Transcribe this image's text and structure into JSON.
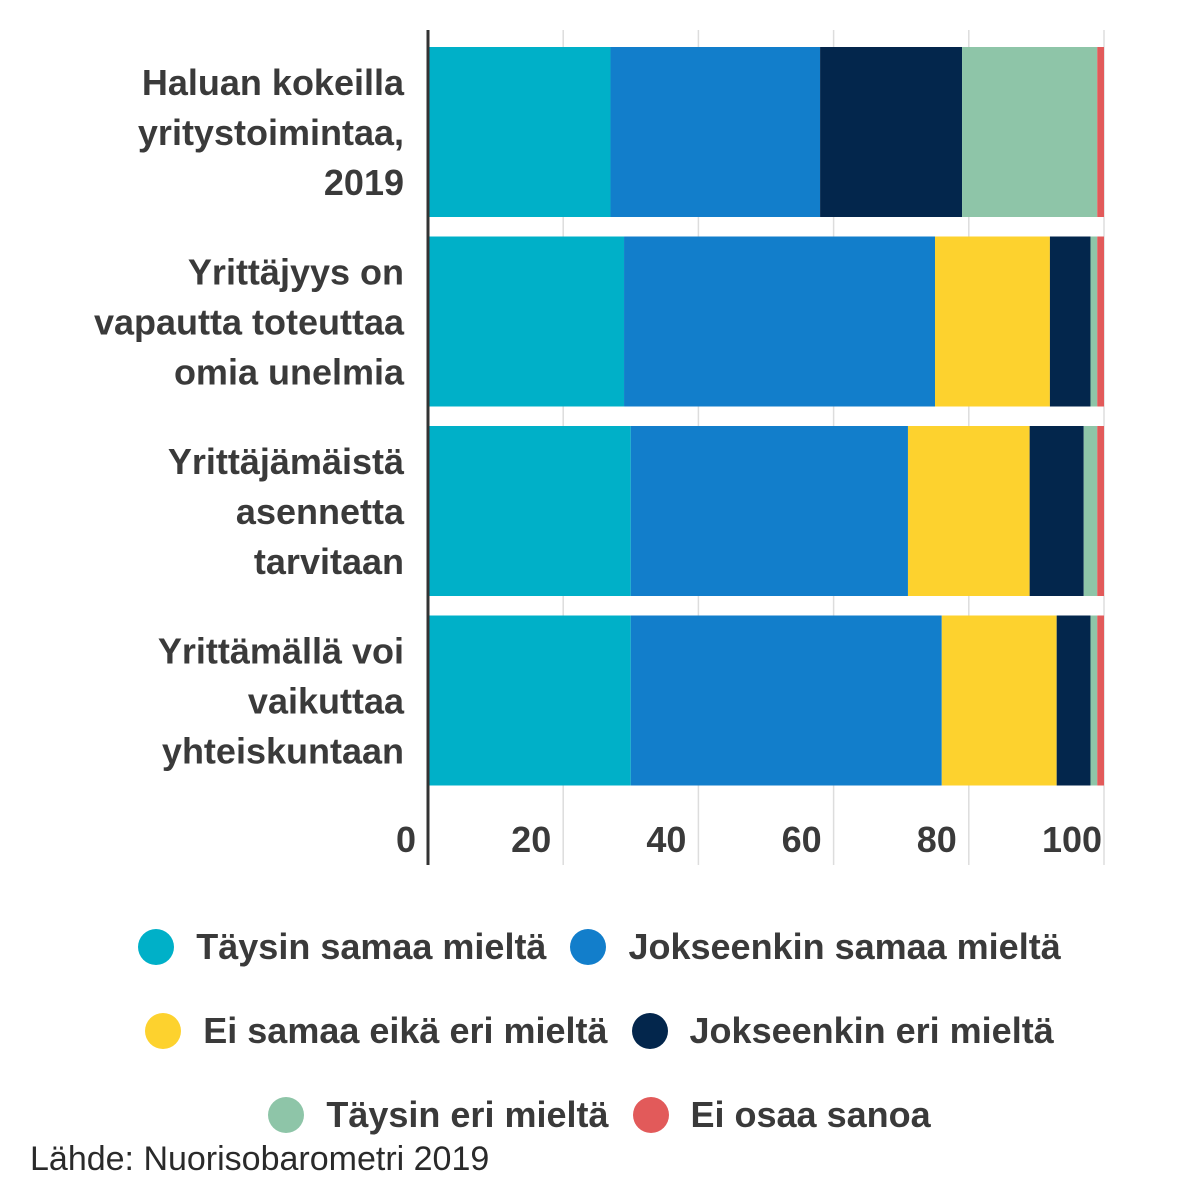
{
  "chart_data": {
    "type": "bar",
    "orientation": "horizontal",
    "stacked": true,
    "categories": [
      [
        "Haluan kokeilla",
        "yritystoimintaa,",
        "2019"
      ],
      [
        "Yrittäjyys on",
        "vapautta toteuttaa",
        "omia unelmia"
      ],
      [
        "Yrittäjämäistä",
        "asennetta",
        "tarvitaan"
      ],
      [
        "Yrittämällä voi",
        "vaikuttaa",
        "yhteiskuntaan"
      ]
    ],
    "series": [
      {
        "name": "Täysin samaa mieltä",
        "color": "#00b0c8",
        "values": [
          27,
          29,
          30,
          30
        ]
      },
      {
        "name": "Jokseenkin samaa mieltä",
        "color": "#127ecb",
        "values": [
          31,
          46,
          41,
          46
        ]
      },
      {
        "name": "Ei samaa eikä eri mieltä",
        "color": "#fdd22e",
        "values": [
          0,
          17,
          18,
          17
        ]
      },
      {
        "name": "Jokseenkin eri mieltä",
        "color": "#03264c",
        "values": [
          21,
          6,
          8,
          5
        ]
      },
      {
        "name": "Täysin eri mieltä",
        "color": "#8ec5a8",
        "values": [
          20,
          1,
          2,
          1
        ]
      },
      {
        "name": "Ei osaa sanoa",
        "color": "#e25a5a",
        "values": [
          1,
          1,
          1,
          1
        ]
      }
    ],
    "xlim": [
      0,
      100
    ],
    "xticks": [
      "0",
      "20",
      "40",
      "60",
      "80",
      "100"
    ],
    "grid": true,
    "legend": "bottom"
  },
  "source_text": "Lähde: Nuorisobarometri 2019"
}
